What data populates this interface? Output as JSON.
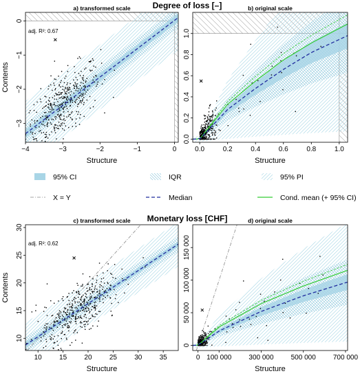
{
  "figure": {
    "section_titles": [
      "Degree of loss [–]",
      "Monetary loss [CHF]"
    ],
    "y_label": "Contents",
    "x_label": "Structure"
  },
  "legend": {
    "items": [
      {
        "label": "95% CI",
        "kind": "ci"
      },
      {
        "label": "IQR",
        "kind": "iqr"
      },
      {
        "label": "95% PI",
        "kind": "pi"
      },
      {
        "label": "X = Y",
        "kind": "xy"
      },
      {
        "label": "Median",
        "kind": "median"
      },
      {
        "label": "Cond. mean (+ 95% CI)",
        "kind": "mean"
      }
    ],
    "colors": {
      "ci": "#a8d5e6",
      "hatch": "#9fd3e3",
      "median": "#1f2a9e",
      "mean": "#33cc33",
      "xy": "#888888"
    }
  },
  "chart_data": [
    {
      "type": "scatter",
      "title": "a) transformed scale",
      "annotation": "adj. R²: 0.67",
      "xlim": [
        -4.0,
        0.1
      ],
      "ylim": [
        -3.55,
        0.25
      ],
      "xticks": [
        -4,
        -3,
        -2,
        -1,
        0
      ],
      "xtick_labels": [
        "−4",
        "−3",
        "−2",
        "−1",
        "0"
      ],
      "yticks": [
        -3,
        -2,
        -1,
        0
      ],
      "ytick_labels": [
        "−3",
        "−2",
        "−1",
        "0"
      ],
      "grid": false,
      "median_line": {
        "x": [
          -4.0,
          0.1
        ],
        "y": [
          -3.3,
          0.1
        ]
      },
      "ci_halfwidth": 0.12,
      "iqr_halfwidth": 0.3,
      "pi_halfwidth": 0.95,
      "outlier_x": {
        "x": -3.2,
        "y": -0.55
      },
      "clip_x": 0,
      "clip_y": 0,
      "points": {
        "n": 420,
        "x_center": -3.0,
        "x_spread": 0.5,
        "noise": 0.45
      }
    },
    {
      "type": "scatter",
      "title": "b) original scale",
      "xlim": [
        -0.05,
        1.06
      ],
      "ylim": [
        -0.03,
        1.2
      ],
      "xticks": [
        0,
        0.2,
        0.4,
        0.6,
        0.8,
        1.0
      ],
      "xtick_labels": [
        "0.0",
        "0.2",
        "0.4",
        "0.6",
        "0.8",
        "1.0"
      ],
      "yticks": [
        0,
        0.2,
        0.4,
        0.6,
        0.8,
        1.0
      ],
      "ytick_labels": [
        "0.0",
        "0.2",
        "0.4",
        "0.6",
        "0.8",
        "1.0"
      ],
      "grid": false,
      "median_curve": {
        "x": [
          0,
          0.2,
          0.4,
          0.6,
          0.8,
          1.06
        ],
        "y": [
          0,
          0.28,
          0.48,
          0.66,
          0.82,
          0.98
        ]
      },
      "mean_curve": {
        "x": [
          0,
          0.2,
          0.4,
          0.6,
          0.8,
          1.06
        ],
        "y": [
          0,
          0.33,
          0.55,
          0.75,
          0.91,
          1.09
        ]
      },
      "outlier_x": {
        "x": 0.01,
        "y": 0.55
      },
      "clip_x": 1.0,
      "clip_y": 1.0,
      "points": {
        "n": 380,
        "x_center": 0.04,
        "x_spread": 0.05,
        "noise": 0.05
      }
    },
    {
      "type": "scatter",
      "title": "c) transformed scale",
      "annotation": "adj. R²: 0.62",
      "xlim": [
        7.5,
        38
      ],
      "ylim": [
        7.8,
        30.5
      ],
      "xticks": [
        10,
        15,
        20,
        25,
        30,
        35
      ],
      "xtick_labels": [
        "10",
        "15",
        "20",
        "25",
        "30",
        "35"
      ],
      "yticks": [
        10,
        15,
        20,
        25,
        30
      ],
      "ytick_labels": [
        "10",
        "15",
        "20",
        "25",
        "30"
      ],
      "grid": false,
      "median_line": {
        "x": [
          7.5,
          38
        ],
        "y": [
          8.8,
          27.0
        ]
      },
      "ci_halfwidth": 0.5,
      "iqr_halfwidth": 1.4,
      "pi_halfwidth": 4.0,
      "outlier_x": {
        "x": 17.2,
        "y": 24.5
      },
      "xy_line": true,
      "points": {
        "n": 420,
        "x_center": 18.0,
        "x_spread": 4.0,
        "noise": 2.4
      }
    },
    {
      "type": "scatter",
      "title": "d) original scale",
      "xlim": [
        -25000,
        710000
      ],
      "ylim": [
        -8000,
        185000
      ],
      "xticks": [
        0,
        100000,
        300000,
        500000,
        700000
      ],
      "xtick_labels": [
        "0",
        "100 000",
        "300 000",
        "500 000",
        "700 000"
      ],
      "yticks": [
        0,
        50000,
        100000,
        150000
      ],
      "ytick_labels": [
        "0",
        "50 000",
        "100 000",
        "150 000"
      ],
      "grid": false,
      "median_curve": {
        "x": [
          0,
          100000,
          300000,
          500000,
          710000
        ],
        "y": [
          0,
          22000,
          52000,
          76000,
          97000
        ]
      },
      "mean_curve": {
        "x": [
          0,
          100000,
          300000,
          500000,
          710000
        ],
        "y": [
          0,
          28000,
          64000,
          91000,
          115000
        ]
      },
      "outlier_x": {
        "x": 20000,
        "y": 54000
      },
      "xy_line": true,
      "points": {
        "n": 380,
        "x_center": 15000,
        "x_spread": 20000,
        "noise": 5000
      }
    }
  ]
}
